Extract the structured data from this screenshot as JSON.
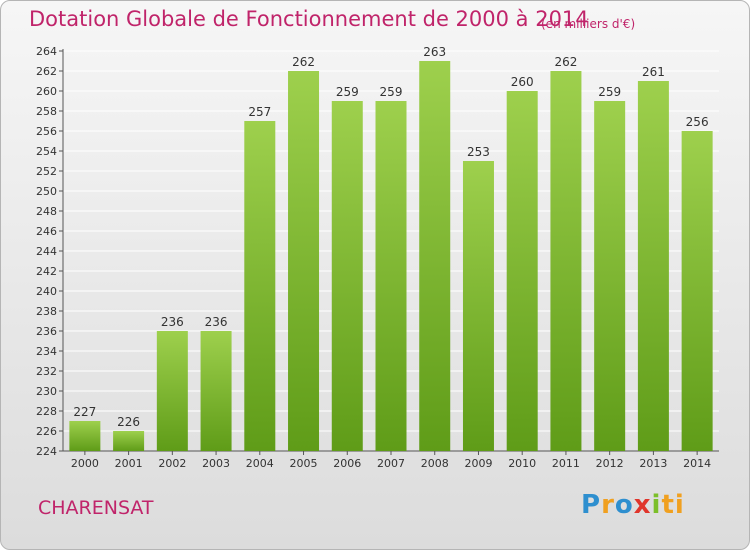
{
  "header": {
    "title": "Dotation Globale de Fonctionnement de 2000 à 2014",
    "subtitle": "(en milliers d'€)"
  },
  "footer": {
    "commune": "CHARENSAT",
    "brand": [
      "P",
      "r",
      "o",
      "x",
      "i",
      "ti"
    ]
  },
  "colors": {
    "bar_light": "#9ed04d",
    "bar_dark": "#5f9c18",
    "text_accent": "#c0246a",
    "grid": "#ffffff"
  },
  "chart_data": {
    "type": "bar",
    "categories": [
      "2000",
      "2001",
      "2002",
      "2003",
      "2004",
      "2005",
      "2006",
      "2007",
      "2008",
      "2009",
      "2010",
      "2011",
      "2012",
      "2013",
      "2014"
    ],
    "values": [
      227,
      226,
      236,
      236,
      257,
      262,
      259,
      259,
      263,
      253,
      260,
      262,
      259,
      261,
      256
    ],
    "ylim": [
      224,
      264
    ],
    "ytick_step": 2,
    "grid": true,
    "legend": "none"
  }
}
